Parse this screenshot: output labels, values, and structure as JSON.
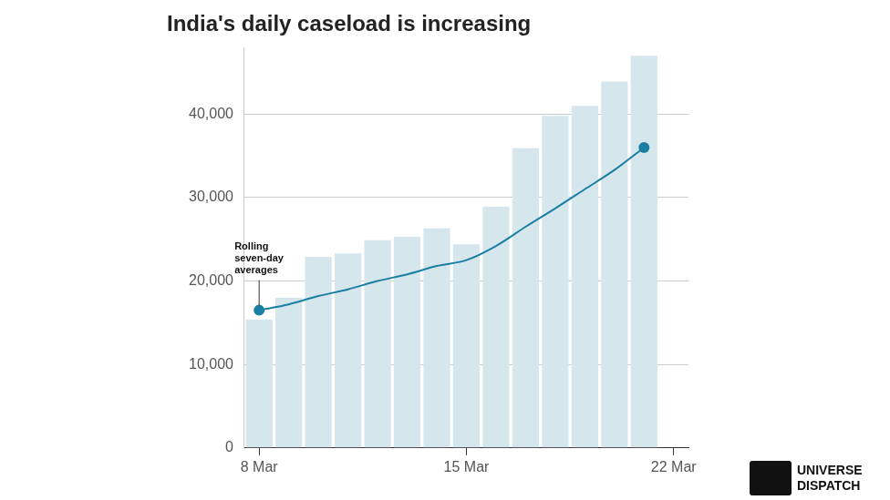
{
  "chart_data": {
    "type": "bar",
    "title": "India's daily caseload is increasing",
    "categories": [
      "8 Mar",
      null,
      null,
      null,
      null,
      null,
      null,
      "15 Mar",
      null,
      null,
      null,
      null,
      null,
      null,
      "22 Mar"
    ],
    "series": [
      {
        "type": "bar",
        "color": "#d6e6ed",
        "values": [
          15400,
          18000,
          22900,
          23300,
          24900,
          25300,
          26300,
          24400,
          28900,
          35900,
          39800,
          41000,
          43900,
          47000,
          null
        ]
      },
      {
        "name": "Rolling seven-day averages",
        "type": "line",
        "color": "#1a7fa3",
        "marker": "circle",
        "values": [
          16500,
          17200,
          18200,
          19000,
          20000,
          20800,
          21800,
          22500,
          24200,
          26500,
          28700,
          31000,
          33300,
          36000,
          null
        ]
      }
    ],
    "ylim": [
      0,
      48000
    ],
    "yticks": [
      0,
      {
        "value": 10000,
        "label": "10,000"
      },
      {
        "value": 20000,
        "label": "20,000"
      },
      {
        "value": 30000,
        "label": "30,000"
      },
      {
        "value": 40000,
        "label": "40,000"
      }
    ],
    "grid": true,
    "watermark": [
      "UNIVERSE",
      "DISPATCH"
    ]
  }
}
